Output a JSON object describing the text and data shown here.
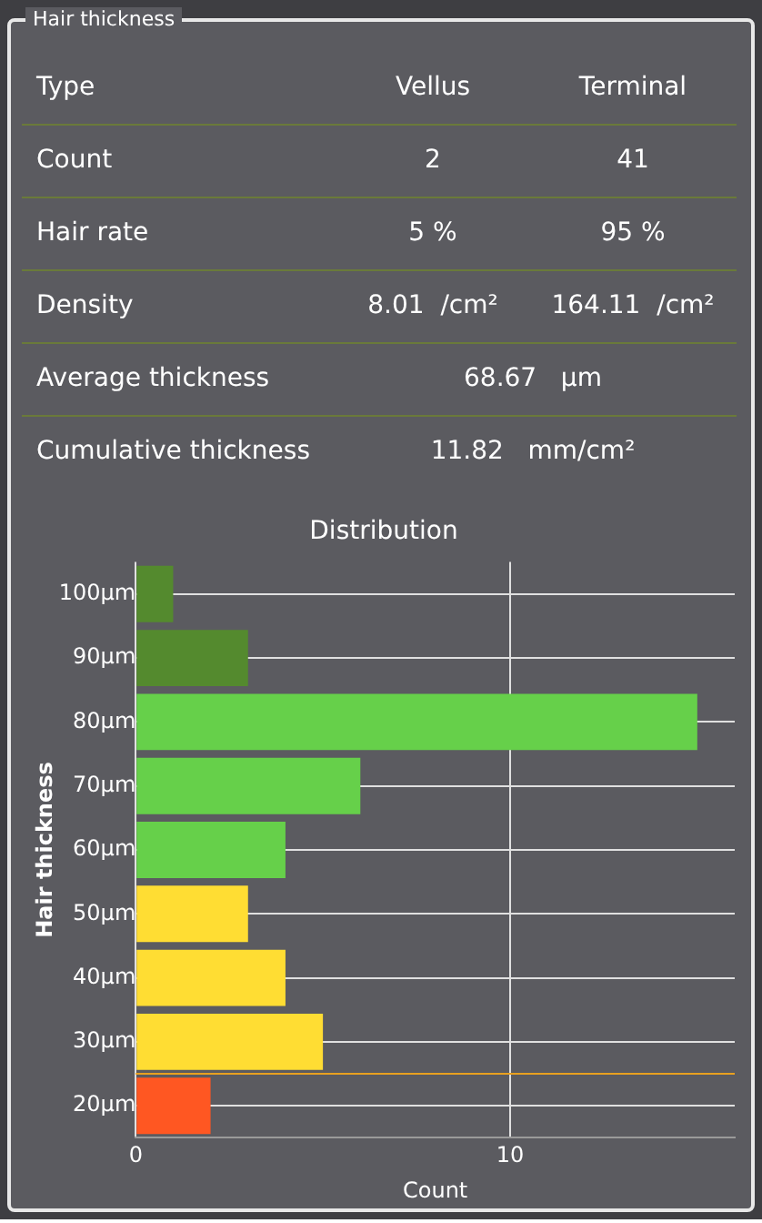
{
  "chart_data": [
    {
      "type": "other",
      "title": "Hair thickness",
      "ylabel": "Type",
      "categories": [
        "Vellus",
        "Terminal"
      ],
      "y_categories": [
        "Count",
        "Hair rate",
        "Density",
        "Average thickness",
        "Cumulative thickness"
      ],
      "annotations": [
        {
          "text": "2",
          "x": "Vellus",
          "y": "Count"
        },
        {
          "text": "41",
          "x": "Terminal",
          "y": "Count"
        },
        {
          "text": "5 %",
          "x": "Vellus",
          "y": "Hair rate"
        },
        {
          "text": "95 %",
          "x": "Terminal",
          "y": "Hair rate"
        },
        {
          "text": "8.01  /cm²",
          "x": "Vellus",
          "y": "Density"
        },
        {
          "text": "164.11  /cm²",
          "x": "Terminal",
          "y": "Density"
        },
        {
          "text": "68.67   µm",
          "y": "Average thickness"
        },
        {
          "text": "11.82   mm/cm²",
          "y": "Cumulative thickness"
        }
      ]
    },
    {
      "type": "bar",
      "orientation": "horizontal",
      "title": "Distribution",
      "xlabel": "Count",
      "ylabel": "Hair thickness",
      "categories": [
        "100µm",
        "90µm",
        "80µm",
        "70µm",
        "60µm",
        "50µm",
        "40µm",
        "30µm",
        "20µm"
      ],
      "values": [
        1,
        3,
        15,
        6,
        4,
        3,
        4,
        5,
        2
      ],
      "colors": [
        "#548a2e",
        "#548a2e",
        "#66d04a",
        "#66d04a",
        "#66d04a",
        "#ffdd33",
        "#ffdd33",
        "#ffdd33",
        "#ff5722"
      ],
      "xlim": [
        0,
        16
      ],
      "xticks": [
        0,
        10
      ],
      "grid": true,
      "legend": false,
      "ref_lines": [
        {
          "axis": "y",
          "value": "20µm",
          "color": "#e8a020"
        }
      ]
    }
  ]
}
